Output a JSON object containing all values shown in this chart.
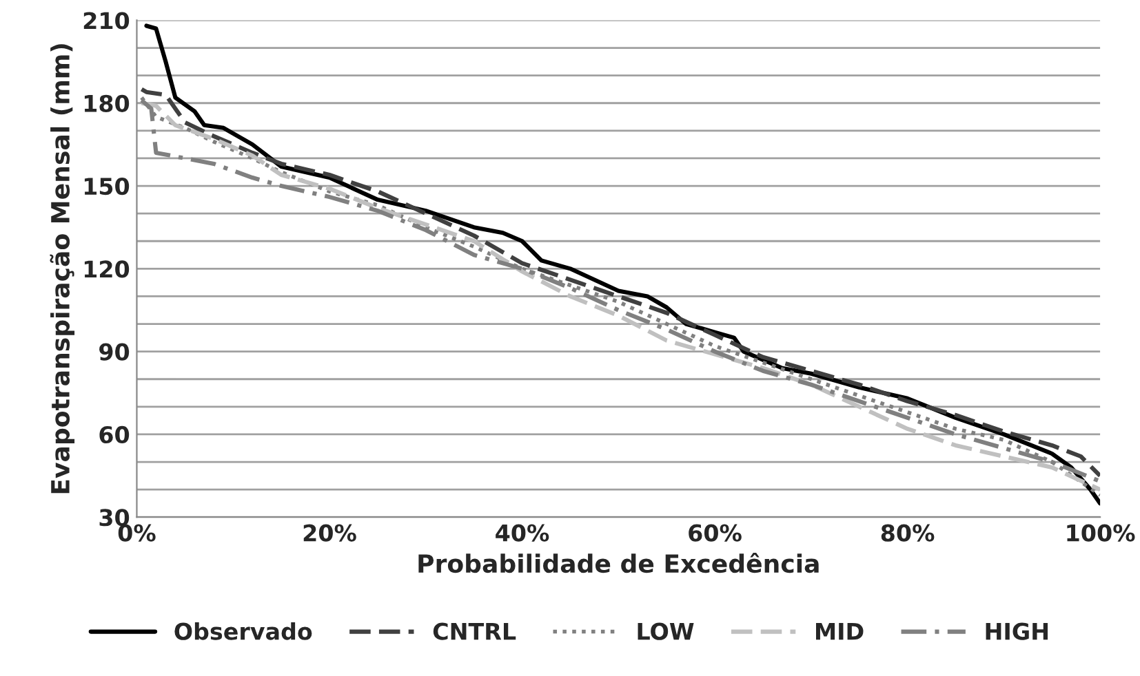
{
  "chart_data": {
    "type": "line",
    "xlabel": "Probabilidade de Excedência",
    "ylabel": "Evapotranspiração Mensal (mm)",
    "xlim": [
      0,
      100
    ],
    "ylim": [
      30,
      210
    ],
    "xticks": [
      {
        "value": 0,
        "label": "0%"
      },
      {
        "value": 20,
        "label": "20%"
      },
      {
        "value": 40,
        "label": "40%"
      },
      {
        "value": 60,
        "label": "60%"
      },
      {
        "value": 80,
        "label": "80%"
      },
      {
        "value": 100,
        "label": "100%"
      }
    ],
    "yticks": [
      30,
      {
        "value": 40,
        "label": null
      },
      {
        "value": 50,
        "label": null
      },
      60,
      {
        "value": 70,
        "label": null
      },
      {
        "value": 80,
        "label": null
      },
      90,
      {
        "value": 100,
        "label": null
      },
      {
        "value": 110,
        "label": null
      },
      120,
      {
        "value": 130,
        "label": null
      },
      {
        "value": 140,
        "label": null
      },
      150,
      {
        "value": 160,
        "label": null
      },
      {
        "value": 170,
        "label": null
      },
      180,
      {
        "value": 190,
        "label": null
      },
      {
        "value": 200,
        "label": null
      },
      210
    ],
    "grid": "y",
    "legend": "bottom",
    "series": [
      {
        "name": "Observado",
        "color": "#000000",
        "line_style": "solid",
        "x": [
          1,
          2,
          3,
          4,
          6,
          7,
          9,
          12,
          15,
          20,
          25,
          30,
          35,
          38,
          40,
          42,
          45,
          50,
          53,
          55,
          57,
          60,
          62,
          63,
          67,
          70,
          75,
          80,
          85,
          90,
          95,
          97,
          99,
          100
        ],
        "values": [
          208,
          207,
          195,
          182,
          177,
          172,
          171,
          165,
          157,
          153,
          145,
          141,
          135,
          133,
          130,
          123,
          120,
          112,
          110,
          106,
          100,
          97,
          95,
          90,
          84,
          82,
          77,
          73,
          66,
          60,
          53,
          48,
          40,
          35
        ]
      },
      {
        "name": "CNTRL",
        "color": "#404040",
        "line_style": "dashed",
        "x": [
          0.5,
          1,
          3,
          5,
          8,
          12,
          15,
          20,
          25,
          30,
          35,
          40,
          45,
          50,
          55,
          60,
          65,
          70,
          75,
          80,
          85,
          90,
          95,
          98,
          100
        ],
        "values": [
          185,
          184,
          183,
          173,
          168,
          162,
          158,
          154,
          148,
          140,
          132,
          122,
          116,
          110,
          104,
          96,
          88,
          83,
          78,
          72,
          67,
          61,
          56,
          52,
          45
        ]
      },
      {
        "name": "LOW",
        "color": "#808080",
        "line_style": "dotted",
        "x": [
          0.5,
          2,
          5,
          8,
          12,
          15,
          20,
          25,
          30,
          35,
          40,
          45,
          50,
          55,
          60,
          65,
          70,
          75,
          80,
          85,
          90,
          95,
          100
        ],
        "values": [
          182,
          175,
          171,
          166,
          160,
          155,
          148,
          143,
          135,
          128,
          120,
          114,
          108,
          100,
          92,
          86,
          80,
          74,
          68,
          62,
          58,
          50,
          38
        ]
      },
      {
        "name": "MID",
        "color": "#c0c0c0",
        "line_style": "dashed",
        "x": [
          0.5,
          2,
          4,
          8,
          12,
          15,
          20,
          25,
          30,
          35,
          40,
          45,
          50,
          55,
          60,
          65,
          70,
          75,
          80,
          85,
          90,
          95,
          100
        ],
        "values": [
          180,
          179,
          172,
          167,
          161,
          154,
          149,
          142,
          136,
          130,
          119,
          110,
          103,
          94,
          89,
          84,
          78,
          70,
          62,
          56,
          52,
          48,
          40
        ]
      },
      {
        "name": "HIGH",
        "color": "#808080",
        "line_style": "dashdot",
        "x": [
          0.5,
          1.5,
          2,
          5,
          8,
          12,
          15,
          20,
          25,
          30,
          35,
          40,
          45,
          50,
          55,
          60,
          65,
          70,
          75,
          80,
          85,
          90,
          95,
          100
        ],
        "values": [
          181,
          178,
          162,
          160,
          158,
          153,
          150,
          146,
          141,
          134,
          125,
          120,
          113,
          105,
          98,
          90,
          83,
          78,
          72,
          66,
          60,
          55,
          50,
          43
        ]
      }
    ]
  }
}
